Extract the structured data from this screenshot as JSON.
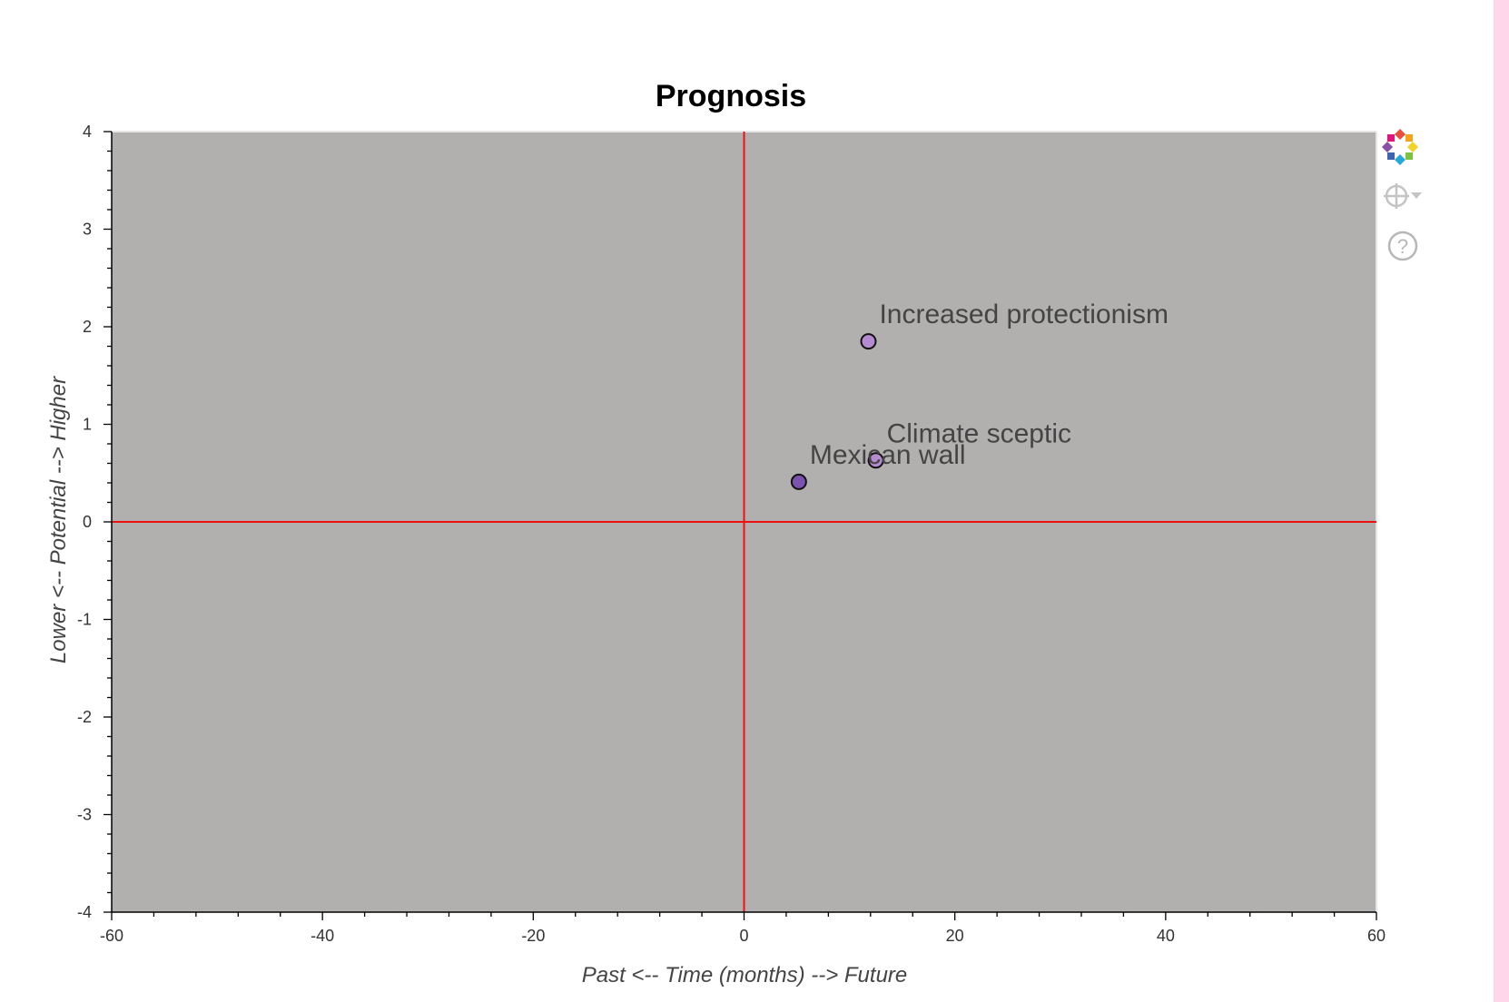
{
  "chart_data": {
    "type": "scatter",
    "title": "Prognosis",
    "xlabel": "Past <-- Time (months) --> Future",
    "ylabel": "Lower <-- Potential --> Higher",
    "xlim": [
      -60,
      60
    ],
    "ylim": [
      -4,
      4
    ],
    "x_ticks": [
      -60,
      -40,
      -20,
      0,
      20,
      40,
      60
    ],
    "y_ticks": [
      4,
      3,
      2,
      1,
      0,
      -1,
      -2,
      -3,
      -4
    ],
    "reference_lines": {
      "x": 0,
      "y": 0,
      "color": "#ee1111"
    },
    "background_color": "#b1b0af",
    "grid": false,
    "points": [
      {
        "label": "Increased protectionism",
        "x": 11.8,
        "y": 1.85,
        "color": "#b58ad0"
      },
      {
        "label": "Climate sceptic",
        "x": 12.5,
        "y": 0.63,
        "color": "#b58ad0"
      },
      {
        "label": "Mexican wall",
        "x": 5.2,
        "y": 0.41,
        "color": "#7a52b0"
      }
    ]
  },
  "toolbar": {
    "tools": [
      {
        "name": "bokeh-logo-icon"
      },
      {
        "name": "crosshair-icon"
      },
      {
        "name": "help-icon"
      }
    ]
  }
}
